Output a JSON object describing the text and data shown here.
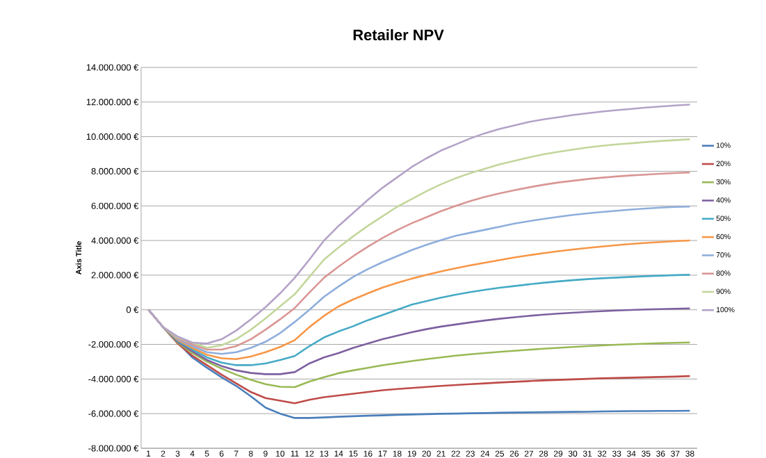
{
  "chart_data": {
    "type": "line",
    "title": "Retailer NPV",
    "ylabel": "Axis Title",
    "categories": [
      "1",
      "2",
      "3",
      "4",
      "5",
      "6",
      "7",
      "8",
      "9",
      "10",
      "11",
      "12",
      "13",
      "14",
      "15",
      "16",
      "17",
      "18",
      "19",
      "20",
      "21",
      "22",
      "23",
      "24",
      "25",
      "26",
      "27",
      "28",
      "29",
      "30",
      "31",
      "32",
      "33",
      "34",
      "35",
      "36",
      "37",
      "38"
    ],
    "series": [
      {
        "name": "10%",
        "color": "#4a7ebb",
        "values": [
          0,
          -1000000,
          -1900000,
          -2750000,
          -3350000,
          -3900000,
          -4400000,
          -5000000,
          -5650000,
          -6000000,
          -6250000,
          -6250000,
          -6220000,
          -6180000,
          -6150000,
          -6120000,
          -6100000,
          -6070000,
          -6050000,
          -6030000,
          -6010000,
          -6000000,
          -5980000,
          -5970000,
          -5950000,
          -5940000,
          -5930000,
          -5920000,
          -5910000,
          -5900000,
          -5890000,
          -5870000,
          -5860000,
          -5850000,
          -5850000,
          -5840000,
          -5840000,
          -5830000
        ]
      },
      {
        "name": "20%",
        "color": "#be4b48",
        "values": [
          0,
          -1000000,
          -1950000,
          -2650000,
          -3200000,
          -3750000,
          -4250000,
          -4750000,
          -5100000,
          -5250000,
          -5400000,
          -5200000,
          -5050000,
          -4950000,
          -4850000,
          -4750000,
          -4650000,
          -4580000,
          -4520000,
          -4460000,
          -4400000,
          -4350000,
          -4300000,
          -4250000,
          -4200000,
          -4160000,
          -4120000,
          -4080000,
          -4050000,
          -4020000,
          -3990000,
          -3960000,
          -3940000,
          -3920000,
          -3900000,
          -3880000,
          -3860000,
          -3830000
        ]
      },
      {
        "name": "30%",
        "color": "#98b954",
        "values": [
          0,
          -1000000,
          -1900000,
          -2500000,
          -3000000,
          -3400000,
          -3750000,
          -4050000,
          -4300000,
          -4450000,
          -4470000,
          -4150000,
          -3900000,
          -3660000,
          -3500000,
          -3350000,
          -3200000,
          -3080000,
          -2960000,
          -2850000,
          -2750000,
          -2650000,
          -2570000,
          -2500000,
          -2430000,
          -2370000,
          -2310000,
          -2250000,
          -2200000,
          -2150000,
          -2100000,
          -2060000,
          -2020000,
          -1990000,
          -1960000,
          -1930000,
          -1910000,
          -1890000
        ]
      },
      {
        "name": "40%",
        "color": "#7d60a0",
        "values": [
          0,
          -1000000,
          -1850000,
          -2400000,
          -2900000,
          -3250000,
          -3500000,
          -3650000,
          -3720000,
          -3720000,
          -3600000,
          -3100000,
          -2750000,
          -2500000,
          -2200000,
          -1950000,
          -1700000,
          -1500000,
          -1300000,
          -1120000,
          -970000,
          -850000,
          -730000,
          -620000,
          -520000,
          -430000,
          -350000,
          -280000,
          -220000,
          -170000,
          -120000,
          -80000,
          -40000,
          -10000,
          20000,
          40000,
          60000,
          80000
        ]
      },
      {
        "name": "50%",
        "color": "#46aac5",
        "values": [
          0,
          -1000000,
          -1800000,
          -2300000,
          -2750000,
          -3050000,
          -3200000,
          -3200000,
          -3100000,
          -2900000,
          -2670000,
          -2100000,
          -1600000,
          -1250000,
          -950000,
          -600000,
          -300000,
          0,
          300000,
          500000,
          700000,
          870000,
          1020000,
          1150000,
          1270000,
          1370000,
          1470000,
          1560000,
          1640000,
          1710000,
          1770000,
          1820000,
          1860000,
          1900000,
          1940000,
          1970000,
          2000000,
          2020000
        ]
      },
      {
        "name": "60%",
        "color": "#f79646",
        "values": [
          0,
          -1000000,
          -1750000,
          -2200000,
          -2600000,
          -2800000,
          -2850000,
          -2700000,
          -2450000,
          -2150000,
          -1750000,
          -1000000,
          -350000,
          200000,
          600000,
          950000,
          1280000,
          1550000,
          1800000,
          2020000,
          2220000,
          2400000,
          2570000,
          2720000,
          2870000,
          3020000,
          3150000,
          3270000,
          3380000,
          3480000,
          3570000,
          3650000,
          3730000,
          3800000,
          3860000,
          3910000,
          3960000,
          4000000
        ]
      },
      {
        "name": "70%",
        "color": "#8eaedc",
        "values": [
          0,
          -1000000,
          -1700000,
          -2100000,
          -2450000,
          -2550000,
          -2450000,
          -2200000,
          -1850000,
          -1350000,
          -700000,
          0,
          750000,
          1350000,
          1900000,
          2350000,
          2750000,
          3100000,
          3450000,
          3750000,
          4020000,
          4270000,
          4450000,
          4620000,
          4800000,
          4980000,
          5120000,
          5250000,
          5370000,
          5480000,
          5570000,
          5650000,
          5720000,
          5790000,
          5850000,
          5900000,
          5940000,
          5960000
        ]
      },
      {
        "name": "80%",
        "color": "#d99694",
        "values": [
          0,
          -1000000,
          -1650000,
          -2000000,
          -2300000,
          -2300000,
          -2100000,
          -1700000,
          -1150000,
          -550000,
          100000,
          1000000,
          1850000,
          2500000,
          3100000,
          3650000,
          4150000,
          4600000,
          5000000,
          5350000,
          5700000,
          6000000,
          6280000,
          6520000,
          6720000,
          6900000,
          7070000,
          7220000,
          7350000,
          7450000,
          7550000,
          7630000,
          7700000,
          7760000,
          7810000,
          7860000,
          7900000,
          7930000
        ]
      },
      {
        "name": "90%",
        "color": "#c3d69b",
        "values": [
          0,
          -1000000,
          -1600000,
          -1900000,
          -2200000,
          -2050000,
          -1700000,
          -1150000,
          -500000,
          200000,
          900000,
          1900000,
          2900000,
          3600000,
          4250000,
          4850000,
          5400000,
          5950000,
          6400000,
          6850000,
          7250000,
          7600000,
          7900000,
          8150000,
          8400000,
          8600000,
          8800000,
          8980000,
          9120000,
          9250000,
          9370000,
          9470000,
          9550000,
          9620000,
          9690000,
          9750000,
          9800000,
          9850000
        ]
      },
      {
        "name": "100%",
        "color": "#b3a2c7",
        "values": [
          0,
          -1000000,
          -1550000,
          -1900000,
          -1950000,
          -1700000,
          -1200000,
          -550000,
          150000,
          950000,
          1850000,
          2900000,
          4000000,
          4850000,
          5600000,
          6350000,
          7050000,
          7650000,
          8250000,
          8750000,
          9200000,
          9550000,
          9900000,
          10200000,
          10450000,
          10650000,
          10850000,
          11000000,
          11120000,
          11250000,
          11350000,
          11450000,
          11530000,
          11600000,
          11680000,
          11740000,
          11800000,
          11850000
        ]
      }
    ],
    "ylim": [
      -8000000,
      14000000
    ],
    "yticks": [
      {
        "value": -8000000,
        "label": "-8.000.000 €"
      },
      {
        "value": -6000000,
        "label": "-6.000.000 €"
      },
      {
        "value": -4000000,
        "label": "-4.000.000 €"
      },
      {
        "value": -2000000,
        "label": "-2.000.000 €"
      },
      {
        "value": 0,
        "label": "0 €"
      },
      {
        "value": 2000000,
        "label": "2.000.000 €"
      },
      {
        "value": 4000000,
        "label": "4.000.000 €"
      },
      {
        "value": 6000000,
        "label": "6.000.000 €"
      },
      {
        "value": 8000000,
        "label": "8.000.000 €"
      },
      {
        "value": 10000000,
        "label": "10.000.000 €"
      },
      {
        "value": 12000000,
        "label": "12.000.000 €"
      },
      {
        "value": 14000000,
        "label": "14.000.000 €"
      }
    ],
    "grid": "y",
    "legend": "right"
  }
}
